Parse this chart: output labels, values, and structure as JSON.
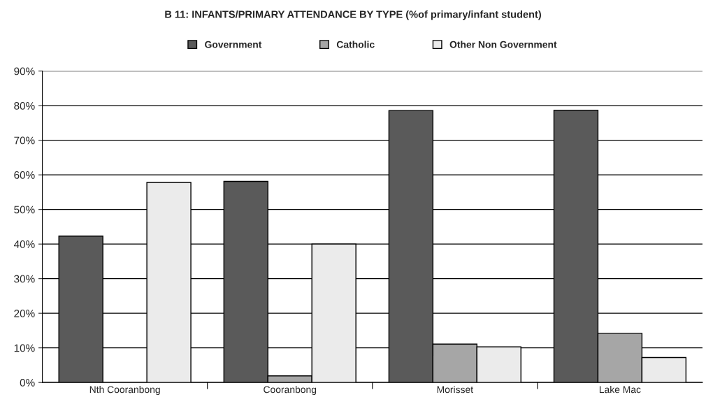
{
  "chart_data": {
    "type": "bar",
    "title": "B 11: INFANTS/PRIMARY ATTENDANCE BY TYPE (%of primary/infant student)",
    "categories": [
      "Nth Cooranbong",
      "Cooranbong",
      "Morisset",
      "Lake Mac"
    ],
    "series": [
      {
        "name": "Government",
        "color": "#5a5a5a",
        "values": [
          42.3,
          58.1,
          78.6,
          78.7
        ]
      },
      {
        "name": "Catholic",
        "color": "#a6a6a6",
        "values": [
          null,
          1.9,
          11.1,
          14.2
        ]
      },
      {
        "name": "Other Non Government",
        "color": "#ebebeb",
        "values": [
          57.8,
          40.0,
          10.3,
          7.2
        ]
      }
    ],
    "ylim": [
      0,
      90
    ],
    "yticks": [
      {
        "value": 0,
        "label": "0%"
      },
      {
        "value": 10,
        "label": "10%"
      },
      {
        "value": 20,
        "label": "20%"
      },
      {
        "value": 30,
        "label": "30%"
      },
      {
        "value": 40,
        "label": "40%"
      },
      {
        "value": 50,
        "label": "50%"
      },
      {
        "value": 60,
        "label": "60%"
      },
      {
        "value": 70,
        "label": "70%"
      },
      {
        "value": 80,
        "label": "80%"
      },
      {
        "value": 90,
        "label": "90%"
      }
    ],
    "grid": "y",
    "legend": "top"
  }
}
